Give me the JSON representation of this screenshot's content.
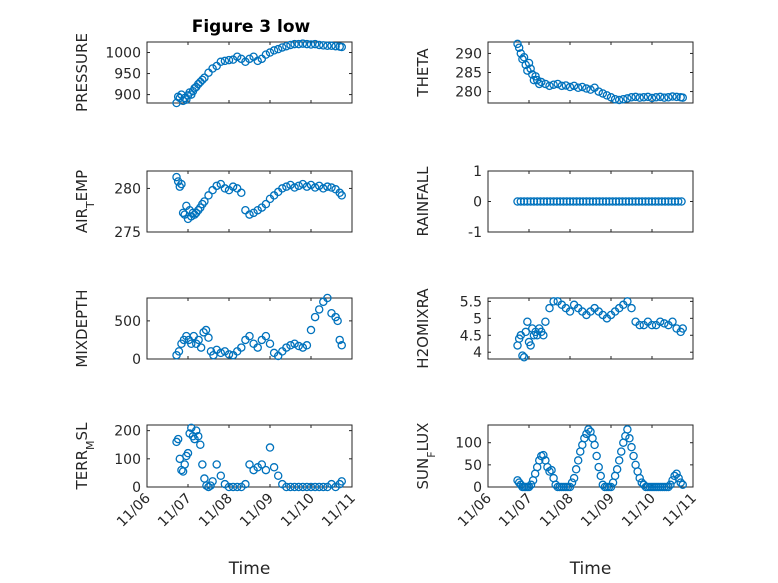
{
  "figure": {
    "title": "Figure 3 low",
    "marker_color": "#0072bd"
  },
  "chart_data": [
    {
      "type": "scatter",
      "title": "Figure 3 low",
      "ylabel": "PRESSURE",
      "xlabel": "",
      "ylim": [
        880,
        1025
      ],
      "yticks": [
        900,
        950,
        1000
      ],
      "xlim": [
        0,
        5
      ],
      "xticks": [
        0,
        1,
        2,
        3,
        4,
        5
      ],
      "xticklabels": [],
      "x": [
        0.72,
        0.76,
        0.8,
        0.84,
        0.88,
        0.92,
        0.96,
        1.0,
        1.04,
        1.08,
        1.12,
        1.16,
        1.2,
        1.25,
        1.3,
        1.35,
        1.4,
        1.5,
        1.6,
        1.7,
        1.8,
        1.9,
        2.0,
        2.1,
        2.2,
        2.3,
        2.4,
        2.5,
        2.6,
        2.7,
        2.8,
        2.9,
        3.0,
        3.1,
        3.2,
        3.3,
        3.4,
        3.5,
        3.6,
        3.7,
        3.8,
        3.9,
        4.0,
        4.1,
        4.2,
        4.3,
        4.4,
        4.5,
        4.6,
        4.7,
        4.75
      ],
      "y": [
        880,
        895,
        892,
        900,
        885,
        892,
        888,
        898,
        905,
        900,
        908,
        915,
        918,
        925,
        930,
        935,
        940,
        952,
        962,
        968,
        978,
        980,
        982,
        983,
        990,
        985,
        978,
        985,
        990,
        980,
        985,
        995,
        1000,
        1005,
        1008,
        1012,
        1015,
        1018,
        1020,
        1020,
        1021,
        1020,
        1019,
        1020,
        1018,
        1017,
        1016,
        1016,
        1015,
        1014,
        1013
      ]
    },
    {
      "type": "scatter",
      "ylabel": "THETA",
      "xlabel": "",
      "ylim": [
        277,
        293
      ],
      "yticks": [
        280,
        285,
        290
      ],
      "xlim": [
        0,
        5
      ],
      "xticks": [
        0,
        1,
        2,
        3,
        4,
        5
      ],
      "xticklabels": [],
      "x": [
        0.72,
        0.76,
        0.8,
        0.84,
        0.88,
        0.92,
        0.96,
        1.0,
        1.04,
        1.08,
        1.12,
        1.16,
        1.2,
        1.25,
        1.3,
        1.4,
        1.5,
        1.6,
        1.7,
        1.8,
        1.9,
        2.0,
        2.1,
        2.2,
        2.3,
        2.4,
        2.5,
        2.6,
        2.7,
        2.8,
        2.9,
        3.0,
        3.1,
        3.2,
        3.3,
        3.4,
        3.5,
        3.6,
        3.7,
        3.8,
        3.9,
        4.0,
        4.1,
        4.2,
        4.3,
        4.4,
        4.5,
        4.6,
        4.7,
        4.75
      ],
      "y": [
        292.5,
        291.5,
        290,
        288.5,
        289,
        287,
        285.5,
        287.5,
        286,
        284.5,
        283,
        284,
        283,
        282,
        282.5,
        282,
        281.5,
        281.8,
        282,
        281.5,
        281.6,
        281.2,
        281.5,
        281,
        281.2,
        280.8,
        280.5,
        281,
        280,
        279.5,
        279,
        278.5,
        278,
        277.8,
        278,
        278.2,
        278.5,
        278.6,
        278.4,
        278.5,
        278.6,
        278.3,
        278.5,
        278.6,
        278.4,
        278.5,
        278.7,
        278.6,
        278.5,
        278.4
      ]
    },
    {
      "type": "scatter",
      "ylabel": "AIR_TEMP",
      "ylabel_main": "AIR",
      "ylabel_sub": "T",
      "ylabel_rest": "EMP",
      "xlabel": "",
      "ylim": [
        275,
        282
      ],
      "yticks": [
        275,
        280
      ],
      "xlim": [
        0,
        5
      ],
      "xticks": [
        0,
        1,
        2,
        3,
        4,
        5
      ],
      "xticklabels": [],
      "x": [
        0.72,
        0.76,
        0.8,
        0.84,
        0.88,
        0.92,
        0.96,
        1.0,
        1.04,
        1.08,
        1.12,
        1.16,
        1.2,
        1.25,
        1.3,
        1.35,
        1.4,
        1.5,
        1.6,
        1.7,
        1.8,
        1.9,
        2.0,
        2.1,
        2.2,
        2.3,
        2.4,
        2.5,
        2.6,
        2.7,
        2.8,
        2.9,
        3.0,
        3.1,
        3.2,
        3.3,
        3.4,
        3.5,
        3.6,
        3.7,
        3.8,
        3.9,
        4.0,
        4.1,
        4.2,
        4.3,
        4.4,
        4.5,
        4.6,
        4.7,
        4.75
      ],
      "y": [
        281.3,
        280.8,
        280.2,
        280.5,
        277.2,
        277,
        278,
        276.5,
        277.5,
        276.8,
        277.2,
        277,
        277.2,
        277.5,
        277.8,
        278.2,
        278.5,
        279.2,
        279.8,
        280.3,
        280.5,
        280,
        279.8,
        280.2,
        280,
        279.5,
        277.5,
        277,
        277.2,
        277.5,
        277.8,
        278.2,
        278.8,
        279.2,
        279.6,
        280,
        280.2,
        280.4,
        280.1,
        280.3,
        280.5,
        280.2,
        280.4,
        280.1,
        280.3,
        280,
        280.2,
        280.1,
        279.9,
        279.5,
        279.2
      ]
    },
    {
      "type": "scatter",
      "ylabel": "RAINFALL",
      "xlabel": "",
      "ylim": [
        -1,
        1
      ],
      "yticks": [
        -1,
        0,
        1
      ],
      "xlim": [
        0,
        5
      ],
      "xticks": [
        0,
        1,
        2,
        3,
        4,
        5
      ],
      "xticklabels": [],
      "x": [
        0.72,
        0.8,
        0.88,
        0.96,
        1.04,
        1.12,
        1.2,
        1.28,
        1.36,
        1.44,
        1.52,
        1.6,
        1.68,
        1.76,
        1.84,
        1.92,
        2.0,
        2.08,
        2.16,
        2.24,
        2.32,
        2.4,
        2.48,
        2.56,
        2.64,
        2.72,
        2.8,
        2.88,
        2.96,
        3.04,
        3.12,
        3.2,
        3.28,
        3.36,
        3.44,
        3.52,
        3.6,
        3.68,
        3.76,
        3.84,
        3.92,
        4.0,
        4.08,
        4.16,
        4.24,
        4.32,
        4.4,
        4.48,
        4.56,
        4.64,
        4.72
      ],
      "y": [
        0,
        0,
        0,
        0,
        0,
        0,
        0,
        0,
        0,
        0,
        0,
        0,
        0,
        0,
        0,
        0,
        0,
        0,
        0,
        0,
        0,
        0,
        0,
        0,
        0,
        0,
        0,
        0,
        0,
        0,
        0,
        0,
        0,
        0,
        0,
        0,
        0,
        0,
        0,
        0,
        0,
        0,
        0,
        0,
        0,
        0,
        0,
        0,
        0,
        0,
        0
      ]
    },
    {
      "type": "scatter",
      "ylabel": "MIXDEPTH",
      "xlabel": "",
      "ylim": [
        0,
        800
      ],
      "yticks": [
        0,
        500
      ],
      "xlim": [
        0,
        5
      ],
      "xticks": [
        0,
        1,
        2,
        3,
        4,
        5
      ],
      "xticklabels": [],
      "x": [
        0.72,
        0.78,
        0.84,
        0.9,
        0.96,
        1.02,
        1.08,
        1.14,
        1.2,
        1.26,
        1.32,
        1.38,
        1.44,
        1.5,
        1.56,
        1.62,
        1.7,
        1.8,
        1.9,
        2.0,
        2.1,
        2.2,
        2.3,
        2.4,
        2.5,
        2.6,
        2.7,
        2.8,
        2.9,
        3.0,
        3.1,
        3.2,
        3.3,
        3.4,
        3.5,
        3.6,
        3.7,
        3.8,
        3.9,
        4.0,
        4.1,
        4.2,
        4.3,
        4.4,
        4.5,
        4.6,
        4.65,
        4.7,
        4.75
      ],
      "y": [
        50,
        100,
        200,
        250,
        300,
        250,
        200,
        300,
        200,
        250,
        150,
        350,
        380,
        280,
        100,
        50,
        120,
        80,
        100,
        60,
        50,
        100,
        150,
        250,
        300,
        200,
        150,
        250,
        300,
        200,
        80,
        40,
        100,
        150,
        180,
        200,
        170,
        150,
        180,
        380,
        550,
        650,
        750,
        800,
        600,
        550,
        500,
        250,
        180
      ]
    },
    {
      "type": "scatter",
      "ylabel": "H2OMIXRA",
      "xlabel": "",
      "ylim": [
        3.8,
        5.6
      ],
      "yticks": [
        4,
        4.5,
        5,
        5.5
      ],
      "xlim": [
        0,
        5
      ],
      "xticks": [
        0,
        1,
        2,
        3,
        4,
        5
      ],
      "xticklabels": [],
      "x": [
        0.72,
        0.76,
        0.8,
        0.84,
        0.88,
        0.92,
        0.96,
        1.0,
        1.04,
        1.08,
        1.12,
        1.16,
        1.2,
        1.25,
        1.3,
        1.35,
        1.4,
        1.5,
        1.6,
        1.7,
        1.8,
        1.9,
        2.0,
        2.1,
        2.2,
        2.3,
        2.4,
        2.5,
        2.6,
        2.7,
        2.8,
        2.9,
        3.0,
        3.1,
        3.2,
        3.3,
        3.4,
        3.5,
        3.6,
        3.7,
        3.8,
        3.9,
        4.0,
        4.1,
        4.2,
        4.3,
        4.4,
        4.5,
        4.6,
        4.7,
        4.75
      ],
      "y": [
        4.2,
        4.4,
        4.5,
        3.9,
        3.85,
        4.6,
        4.9,
        4.3,
        4.2,
        4.7,
        4.5,
        4.6,
        4.5,
        4.7,
        4.6,
        4.5,
        4.9,
        5.3,
        5.5,
        5.5,
        5.4,
        5.3,
        5.2,
        5.4,
        5.3,
        5.2,
        5.1,
        5.2,
        5.3,
        5.2,
        5.1,
        5.0,
        5.1,
        5.2,
        5.3,
        5.4,
        5.5,
        5.3,
        4.9,
        4.8,
        4.8,
        4.9,
        4.8,
        4.8,
        4.9,
        4.85,
        4.8,
        4.9,
        4.7,
        4.6,
        4.7
      ]
    },
    {
      "type": "scatter",
      "ylabel": "TERR_MSL",
      "ylabel_main": "TERR",
      "ylabel_sub": "M",
      "ylabel_rest": "SL",
      "xlabel": "Time",
      "ylim": [
        0,
        220
      ],
      "yticks": [
        0,
        100,
        200
      ],
      "xlim": [
        0,
        5
      ],
      "xticks": [
        0,
        1,
        2,
        3,
        4,
        5
      ],
      "xticklabels": [
        "11/06",
        "11/07",
        "11/08",
        "11/09",
        "11/10",
        "11/11"
      ],
      "x": [
        0.72,
        0.76,
        0.8,
        0.84,
        0.88,
        0.92,
        0.96,
        1.0,
        1.04,
        1.08,
        1.12,
        1.16,
        1.2,
        1.25,
        1.3,
        1.35,
        1.4,
        1.45,
        1.5,
        1.55,
        1.6,
        1.7,
        1.8,
        1.9,
        2.0,
        2.1,
        2.2,
        2.3,
        2.4,
        2.5,
        2.6,
        2.7,
        2.8,
        2.9,
        3.0,
        3.1,
        3.2,
        3.3,
        3.4,
        3.5,
        3.6,
        3.7,
        3.8,
        3.9,
        4.0,
        4.1,
        4.2,
        4.3,
        4.4,
        4.5,
        4.6,
        4.7,
        4.75
      ],
      "y": [
        160,
        170,
        100,
        60,
        55,
        80,
        110,
        120,
        190,
        210,
        180,
        170,
        200,
        180,
        150,
        80,
        30,
        5,
        0,
        5,
        20,
        80,
        40,
        10,
        0,
        0,
        0,
        0,
        10,
        80,
        60,
        70,
        80,
        60,
        140,
        70,
        40,
        10,
        0,
        0,
        0,
        0,
        0,
        0,
        0,
        0,
        0,
        0,
        0,
        10,
        0,
        10,
        20
      ]
    },
    {
      "type": "scatter",
      "ylabel": "SUN_FLUX",
      "ylabel_main": "SUN",
      "ylabel_sub": "F",
      "ylabel_rest": "LUX",
      "xlabel": "Time",
      "ylim": [
        0,
        140
      ],
      "yticks": [
        0,
        50,
        100
      ],
      "xlim": [
        0,
        5
      ],
      "xticks": [
        0,
        1,
        2,
        3,
        4,
        5
      ],
      "xticklabels": [
        "11/06",
        "11/07",
        "11/08",
        "11/09",
        "11/10",
        "11/11"
      ],
      "x": [
        0.72,
        0.76,
        0.8,
        0.84,
        0.88,
        0.92,
        0.96,
        1.0,
        1.05,
        1.1,
        1.15,
        1.2,
        1.25,
        1.3,
        1.35,
        1.4,
        1.45,
        1.5,
        1.55,
        1.6,
        1.65,
        1.7,
        1.75,
        1.8,
        1.85,
        1.9,
        1.95,
        2.0,
        2.05,
        2.1,
        2.15,
        2.2,
        2.25,
        2.3,
        2.35,
        2.4,
        2.45,
        2.5,
        2.55,
        2.6,
        2.65,
        2.7,
        2.75,
        2.8,
        2.85,
        2.9,
        2.95,
        3.0,
        3.05,
        3.1,
        3.15,
        3.2,
        3.25,
        3.3,
        3.35,
        3.4,
        3.45,
        3.5,
        3.55,
        3.6,
        3.65,
        3.7,
        3.75,
        3.8,
        3.85,
        3.9,
        3.95,
        4.0,
        4.05,
        4.1,
        4.15,
        4.2,
        4.25,
        4.3,
        4.35,
        4.4,
        4.45,
        4.5,
        4.55,
        4.6,
        4.65,
        4.7,
        4.75
      ],
      "y": [
        15,
        10,
        5,
        0,
        0,
        0,
        0,
        0,
        5,
        15,
        30,
        45,
        60,
        70,
        72,
        60,
        45,
        35,
        38,
        20,
        5,
        0,
        0,
        0,
        0,
        0,
        0,
        0,
        10,
        20,
        40,
        60,
        80,
        95,
        110,
        120,
        130,
        125,
        110,
        95,
        70,
        45,
        25,
        5,
        0,
        0,
        0,
        0,
        10,
        25,
        40,
        60,
        80,
        100,
        115,
        130,
        110,
        90,
        70,
        50,
        35,
        20,
        10,
        5,
        0,
        0,
        0,
        0,
        0,
        0,
        0,
        0,
        0,
        0,
        0,
        0,
        5,
        15,
        25,
        30,
        20,
        10,
        5
      ]
    }
  ]
}
